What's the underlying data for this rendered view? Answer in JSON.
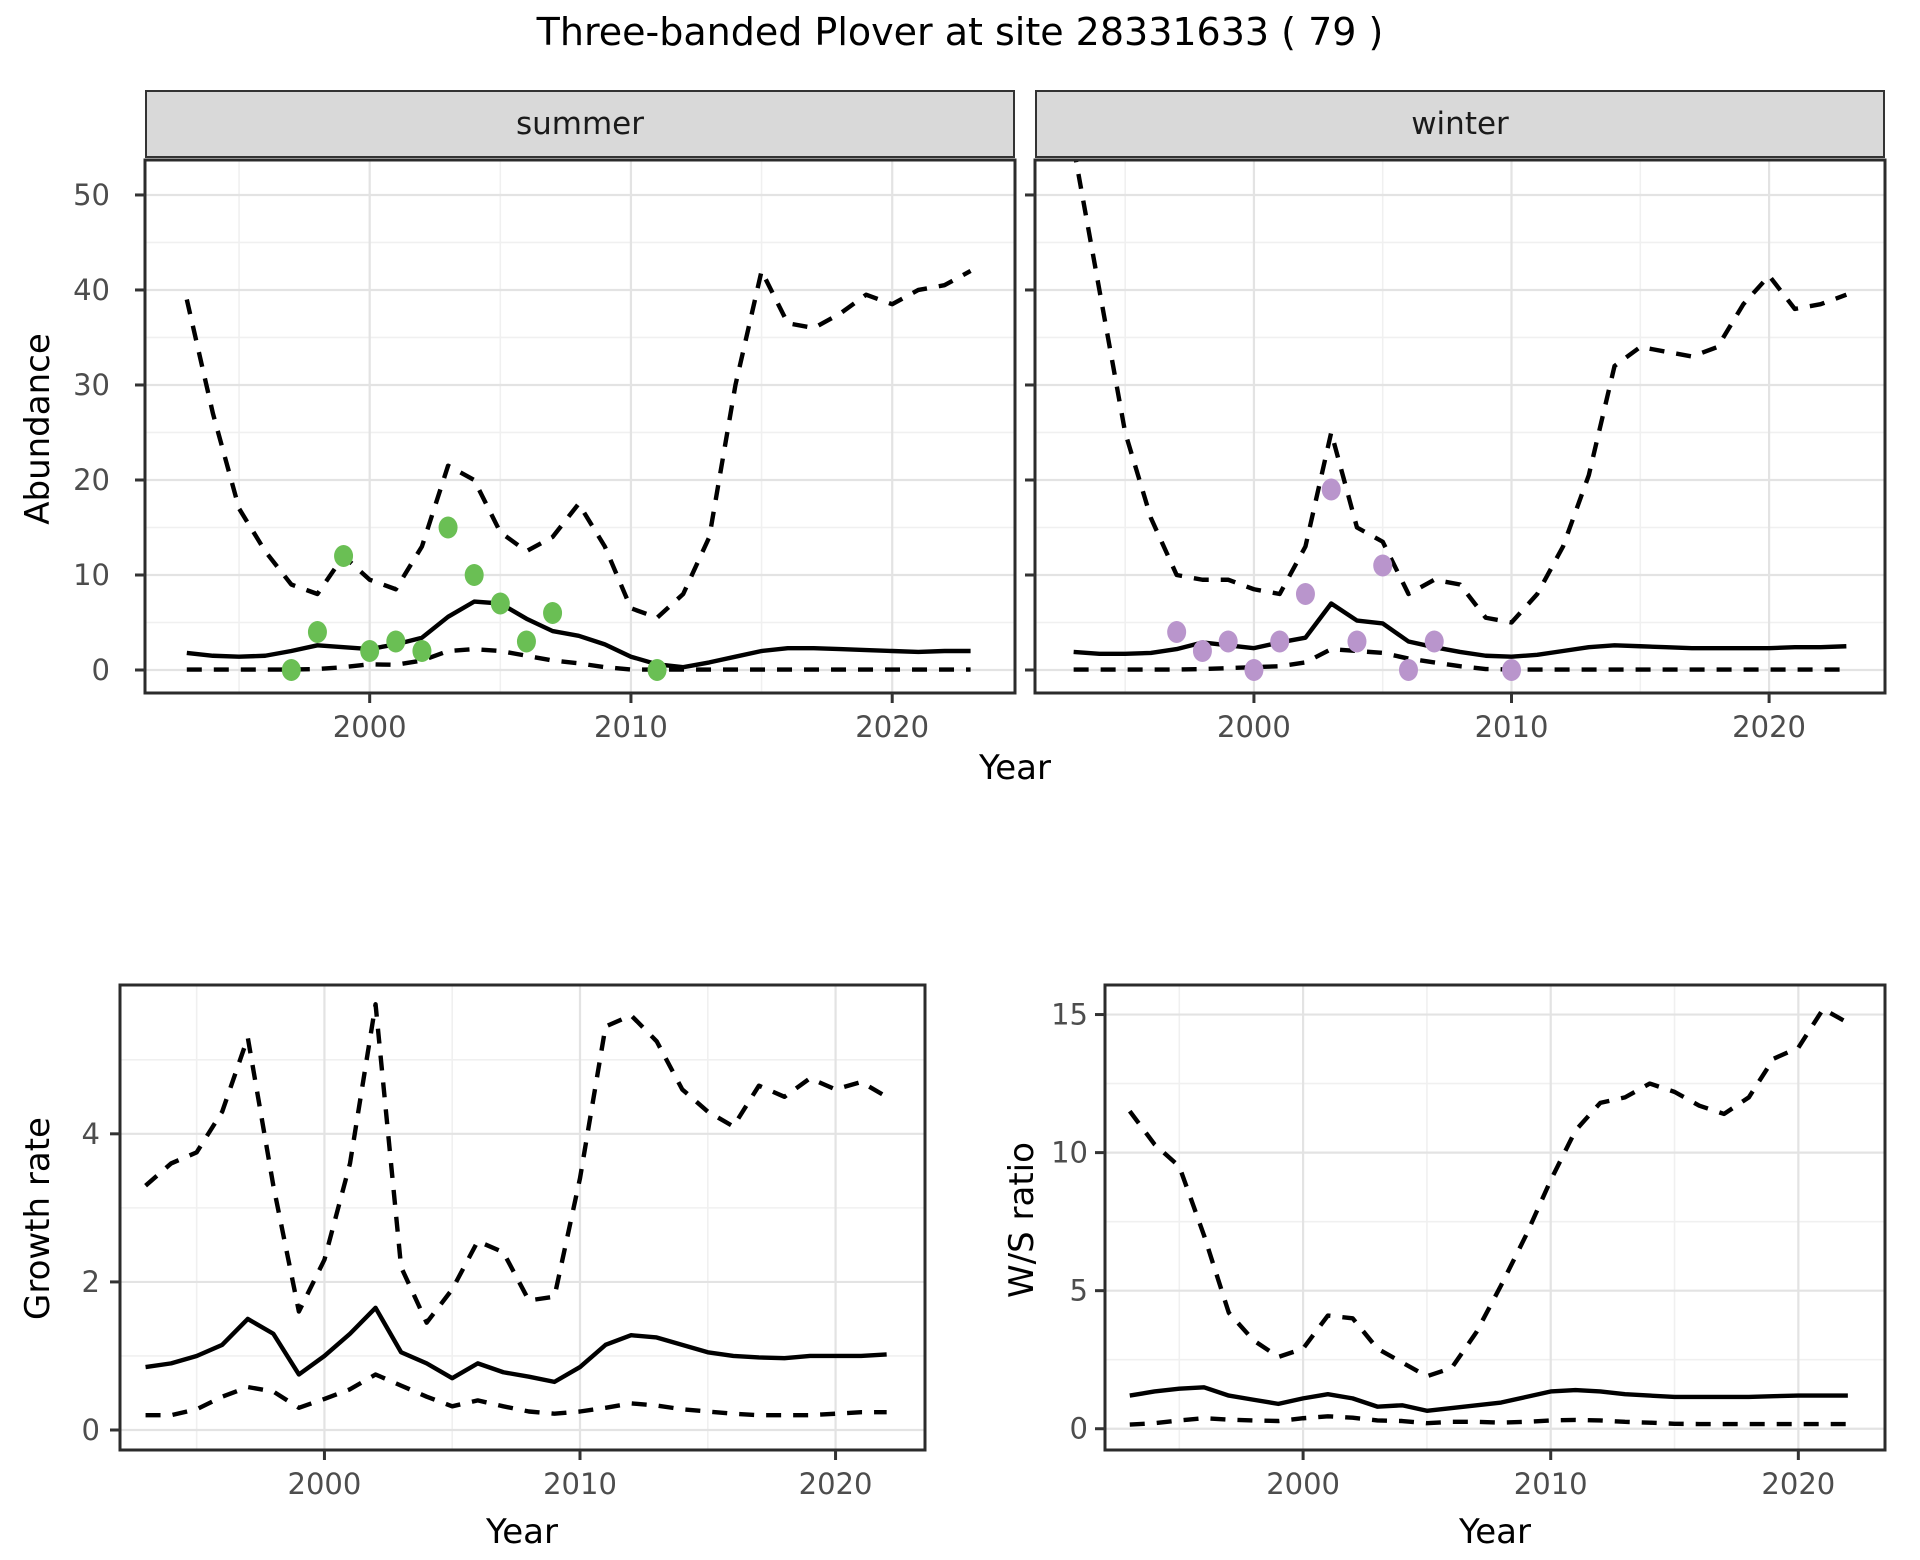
{
  "title": "Three-banded Plover at site 28331633 ( 79 )",
  "facets": [
    {
      "label": "summer"
    },
    {
      "label": "winter"
    }
  ],
  "axis_labels": {
    "abundance": "Abundance",
    "year_top": "Year",
    "growth_rate": "Growth rate",
    "ws_ratio": "W/S ratio",
    "year_bottom_left": "Year",
    "year_bottom_right": "Year"
  },
  "colors": {
    "summer_points": "#6abf54",
    "winter_points": "#b995cc",
    "line": "#000000",
    "grid_major": "#e3e3e3",
    "grid_minor": "#f0f0f0",
    "panel_border": "#2b2b2b",
    "strip_bg": "#d9d9d9",
    "tick_text": "#4d4d4d"
  },
  "chart_data": [
    {
      "id": "abundance_summer",
      "type": "line",
      "facet": "summer",
      "xlabel": "Year",
      "ylabel": "Abundance",
      "xlim": [
        1991.4,
        2024.7
      ],
      "ylim": [
        -2.42,
        53.68
      ],
      "xticks": [
        2000,
        2010,
        2020
      ],
      "xminor": [
        1995,
        2005,
        2015
      ],
      "yticks": [
        0,
        10,
        20,
        30,
        40,
        50
      ],
      "yminor": [
        5,
        15,
        25,
        35,
        45
      ],
      "show_ytick_labels": false,
      "x": [
        1993,
        1994,
        1995,
        1996,
        1997,
        1998,
        1999,
        2000,
        2001,
        2002,
        2003,
        2004,
        2005,
        2006,
        2007,
        2008,
        2009,
        2010,
        2011,
        2012,
        2013,
        2014,
        2015,
        2016,
        2017,
        2018,
        2019,
        2020,
        2021,
        2022,
        2023
      ],
      "series": [
        {
          "name": "upper_ci",
          "style": "dashed",
          "values": [
            39,
            27,
            17,
            12.5,
            9,
            8,
            12,
            9.5,
            8.5,
            13,
            21.5,
            20,
            14.5,
            12.5,
            14,
            17.5,
            13,
            6.5,
            5.5,
            8,
            14,
            30,
            42,
            36.5,
            36,
            37.5,
            39.5,
            38.5,
            40,
            40.5,
            42
          ]
        },
        {
          "name": "mean",
          "style": "solid",
          "values": [
            1.8,
            1.5,
            1.4,
            1.5,
            2.0,
            2.6,
            2.4,
            2.2,
            2.7,
            3.4,
            5.6,
            7.2,
            7.0,
            5.4,
            4.1,
            3.6,
            2.7,
            1.4,
            0.6,
            0.3,
            0.8,
            1.4,
            2.0,
            2.3,
            2.3,
            2.2,
            2.1,
            2.0,
            1.9,
            2.0,
            2.0
          ]
        },
        {
          "name": "lower_ci",
          "style": "dashed",
          "values": [
            0.05,
            0.05,
            0.05,
            0.05,
            0.05,
            0.1,
            0.3,
            0.6,
            0.55,
            1.0,
            2.0,
            2.2,
            2.0,
            1.5,
            1.0,
            0.7,
            0.3,
            0.05,
            0.05,
            0.05,
            0.05,
            0.05,
            0.05,
            0.05,
            0.05,
            0.05,
            0.05,
            0.05,
            0.05,
            0.05,
            0.05
          ]
        }
      ],
      "points": {
        "name": "summer_counts",
        "color": "#6abf54",
        "x": [
          1997,
          1998,
          1999,
          2000,
          2001,
          2002,
          2003,
          2004,
          2005,
          2006,
          2007,
          2011
        ],
        "y": [
          0,
          4,
          12,
          2,
          3,
          2,
          15,
          10,
          7,
          3,
          6,
          0
        ]
      }
    },
    {
      "id": "abundance_winter",
      "type": "line",
      "facet": "winter",
      "xlabel": "Year",
      "ylabel": "Abundance",
      "xlim": [
        1991.5,
        2024.5
      ],
      "ylim": [
        -2.42,
        53.68
      ],
      "xticks": [
        2000,
        2010,
        2020
      ],
      "xminor": [
        1995,
        2005,
        2015
      ],
      "yticks": [
        0,
        10,
        20,
        30,
        40,
        50
      ],
      "yminor": [
        5,
        15,
        25,
        35,
        45
      ],
      "show_ytick_labels": false,
      "x": [
        1993,
        1994,
        1995,
        1996,
        1997,
        1998,
        1999,
        2000,
        2001,
        2002,
        2003,
        2004,
        2005,
        2006,
        2007,
        2008,
        2009,
        2010,
        2011,
        2012,
        2013,
        2014,
        2015,
        2016,
        2017,
        2018,
        2019,
        2020,
        2021,
        2022,
        2023
      ],
      "series": [
        {
          "name": "upper_ci",
          "style": "dashed",
          "values": [
            55,
            40,
            25,
            16,
            10,
            9.5,
            9.5,
            8.5,
            8,
            13,
            25,
            15,
            13.5,
            8,
            9.5,
            9,
            5.5,
            5,
            8,
            13,
            20.5,
            32,
            34,
            33.5,
            33,
            34,
            38.5,
            41.5,
            38,
            38.5,
            39.5
          ]
        },
        {
          "name": "mean",
          "style": "solid",
          "values": [
            1.9,
            1.7,
            1.7,
            1.8,
            2.2,
            2.9,
            2.6,
            2.3,
            2.9,
            3.4,
            7.0,
            5.2,
            4.9,
            3.0,
            2.4,
            1.9,
            1.5,
            1.4,
            1.6,
            2.0,
            2.4,
            2.6,
            2.5,
            2.4,
            2.3,
            2.3,
            2.3,
            2.3,
            2.4,
            2.4,
            2.5
          ]
        },
        {
          "name": "lower_ci",
          "style": "dashed",
          "values": [
            0.05,
            0.05,
            0.05,
            0.05,
            0.05,
            0.1,
            0.2,
            0.3,
            0.4,
            0.8,
            2.2,
            2.0,
            1.8,
            1.2,
            0.8,
            0.4,
            0.1,
            0.05,
            0.05,
            0.05,
            0.05,
            0.05,
            0.05,
            0.05,
            0.05,
            0.05,
            0.05,
            0.05,
            0.05,
            0.05,
            0.05
          ]
        }
      ],
      "points": {
        "name": "winter_counts",
        "color": "#b995cc",
        "x": [
          1997,
          1998,
          1999,
          2000,
          2001,
          2002,
          2003,
          2004,
          2005,
          2006,
          2007,
          2010
        ],
        "y": [
          4,
          2,
          3,
          0,
          3,
          8,
          19,
          3,
          11,
          0,
          3,
          0
        ]
      }
    },
    {
      "id": "growth_rate",
      "type": "line",
      "xlabel": "Year",
      "ylabel": "Growth rate",
      "xlim": [
        1992,
        2023.5
      ],
      "ylim": [
        -0.27,
        6.01
      ],
      "xticks": [
        2000,
        2010,
        2020
      ],
      "xminor": [
        1995,
        2005,
        2015
      ],
      "yticks": [
        0,
        2,
        4
      ],
      "yminor": [
        1,
        3,
        5
      ],
      "show_ytick_labels": true,
      "x": [
        1993,
        1994,
        1995,
        1996,
        1997,
        1998,
        1999,
        2000,
        2001,
        2002,
        2003,
        2004,
        2005,
        2006,
        2007,
        2008,
        2009,
        2010,
        2011,
        2012,
        2013,
        2014,
        2015,
        2016,
        2017,
        2018,
        2019,
        2020,
        2021,
        2022
      ],
      "series": [
        {
          "name": "upper_ci",
          "style": "dashed",
          "values": [
            3.3,
            3.6,
            3.75,
            4.3,
            5.3,
            3.3,
            1.6,
            2.3,
            3.6,
            5.75,
            2.2,
            1.45,
            1.9,
            2.55,
            2.4,
            1.75,
            1.8,
            3.4,
            5.45,
            5.6,
            5.25,
            4.6,
            4.3,
            4.1,
            4.65,
            4.5,
            4.75,
            4.6,
            4.7,
            4.5
          ]
        },
        {
          "name": "mean",
          "style": "solid",
          "values": [
            0.85,
            0.9,
            1.0,
            1.15,
            1.5,
            1.3,
            0.75,
            1.0,
            1.3,
            1.65,
            1.05,
            0.9,
            0.7,
            0.9,
            0.78,
            0.72,
            0.65,
            0.85,
            1.15,
            1.28,
            1.25,
            1.15,
            1.05,
            1.0,
            0.98,
            0.97,
            1.0,
            1.0,
            1.0,
            1.02
          ]
        },
        {
          "name": "lower_ci",
          "style": "dashed",
          "values": [
            0.2,
            0.2,
            0.28,
            0.45,
            0.58,
            0.52,
            0.3,
            0.42,
            0.55,
            0.75,
            0.6,
            0.45,
            0.32,
            0.4,
            0.32,
            0.25,
            0.22,
            0.25,
            0.3,
            0.36,
            0.33,
            0.28,
            0.25,
            0.22,
            0.2,
            0.2,
            0.2,
            0.22,
            0.24,
            0.24
          ]
        }
      ]
    },
    {
      "id": "ws_ratio",
      "type": "line",
      "xlabel": "Year",
      "ylabel": "W/S ratio",
      "xlim": [
        1992,
        2023.5
      ],
      "ylim": [
        -0.77,
        16.07
      ],
      "xticks": [
        2000,
        2010,
        2020
      ],
      "xminor": [
        1995,
        2005,
        2015
      ],
      "yticks": [
        0,
        5,
        10,
        15
      ],
      "yminor": [
        2.5,
        7.5,
        12.5
      ],
      "show_ytick_labels": true,
      "x": [
        1993,
        1994,
        1995,
        1996,
        1997,
        1998,
        1999,
        2000,
        2001,
        2002,
        2003,
        2004,
        2005,
        2006,
        2007,
        2008,
        2009,
        2010,
        2011,
        2012,
        2013,
        2014,
        2015,
        2016,
        2017,
        2018,
        2019,
        2020,
        2021,
        2022
      ],
      "series": [
        {
          "name": "upper_ci",
          "style": "dashed",
          "values": [
            11.5,
            10.3,
            9.5,
            7.0,
            4.2,
            3.2,
            2.6,
            2.9,
            4.1,
            4.0,
            2.9,
            2.4,
            1.9,
            2.2,
            3.5,
            5.2,
            7.0,
            9.0,
            10.8,
            11.8,
            12.0,
            12.5,
            12.2,
            11.7,
            11.4,
            12.0,
            13.4,
            13.8,
            15.2,
            14.7
          ]
        },
        {
          "name": "mean",
          "style": "solid",
          "values": [
            1.2,
            1.35,
            1.45,
            1.5,
            1.2,
            1.05,
            0.9,
            1.1,
            1.25,
            1.1,
            0.8,
            0.85,
            0.65,
            0.75,
            0.85,
            0.95,
            1.15,
            1.35,
            1.4,
            1.35,
            1.25,
            1.2,
            1.15,
            1.15,
            1.15,
            1.15,
            1.18,
            1.2,
            1.2,
            1.2
          ]
        },
        {
          "name": "lower_ci",
          "style": "dashed",
          "values": [
            0.15,
            0.2,
            0.3,
            0.38,
            0.33,
            0.3,
            0.28,
            0.38,
            0.45,
            0.4,
            0.3,
            0.28,
            0.2,
            0.25,
            0.25,
            0.22,
            0.25,
            0.3,
            0.32,
            0.3,
            0.25,
            0.22,
            0.18,
            0.17,
            0.17,
            0.17,
            0.17,
            0.17,
            0.17,
            0.17
          ]
        }
      ]
    }
  ]
}
